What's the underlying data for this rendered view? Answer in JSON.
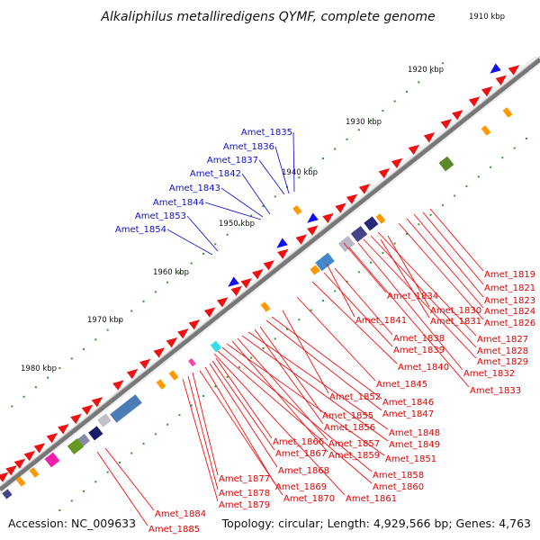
{
  "title": "Alkaliphilus metalliredigens QYMF, complete genome",
  "accession": "Accession: NC_009633",
  "topology": "Topology: circular; Length: 4,929,566 bp; Genes: 4,763",
  "kbp_labels": [
    "1910 kbp",
    "1920 kbp",
    "1930 kbp",
    "1940 kbp",
    "1950 kbp",
    "1960 kbp",
    "1970 kbp",
    "1980 kbp"
  ],
  "outer_labels": [
    "Amet_1835",
    "Amet_1836",
    "Amet_1837",
    "Amet_1842",
    "Amet_1843",
    "Amet_1844",
    "Amet_1853",
    "Amet_1854"
  ],
  "inner_labels": [
    "Amet_1819",
    "Amet_1821",
    "Amet_1823",
    "Amet_1824",
    "Amet_1826",
    "Amet_1834",
    "Amet_1830",
    "Amet_1831",
    "Amet_1841",
    "Amet_1827",
    "Amet_1828",
    "Amet_1829",
    "Amet_1838",
    "Amet_1839",
    "Amet_1840",
    "Amet_1832",
    "Amet_1833",
    "Amet_1845",
    "Amet_1852",
    "Amet_1846",
    "Amet_1847",
    "Amet_1855",
    "Amet_1856",
    "Amet_1848",
    "Amet_1849",
    "Amet_1866",
    "Amet_1857",
    "Amet_1867",
    "Amet_1859",
    "Amet_1851",
    "Amet_1868",
    "Amet_1858",
    "Amet_1877",
    "Amet_1869",
    "Amet_1860",
    "Amet_1878",
    "Amet_1870",
    "Amet_1861",
    "Amet_1879",
    "Amet_1884",
    "Amet_1885"
  ],
  "colors": {
    "forward": "#ee1111",
    "reverse": "#1111ee",
    "backbone": "#777777",
    "ticks": "#2a9a2a"
  }
}
